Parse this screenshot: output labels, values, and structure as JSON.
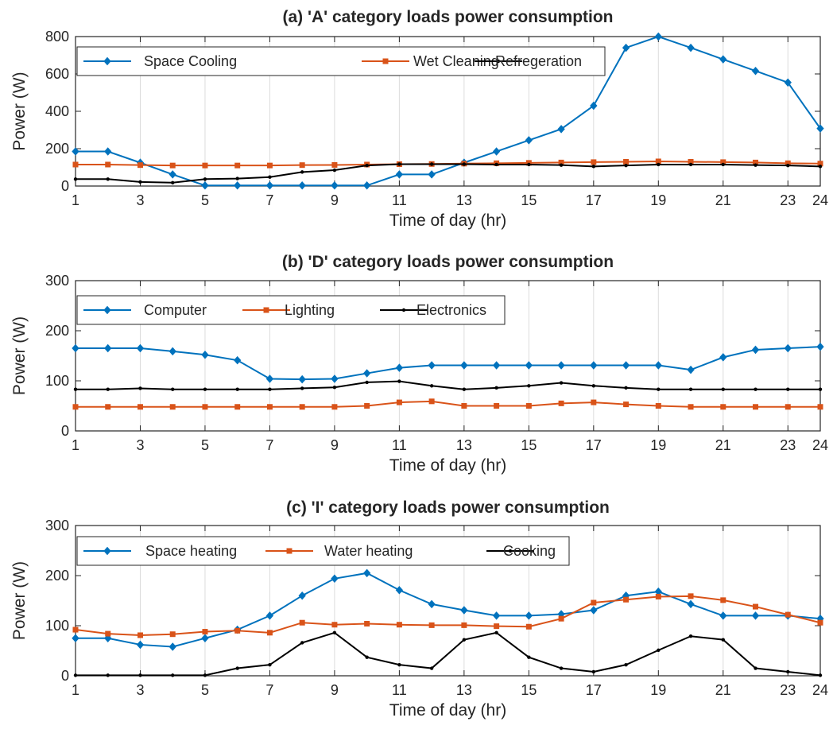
{
  "chart_data": [
    {
      "type": "line",
      "title": "(a) 'A' category loads power consumption",
      "xlabel": "Time of day (hr)",
      "ylabel": "Power (W)",
      "xlim": [
        1,
        24
      ],
      "ylim": [
        0,
        800
      ],
      "xticks": [
        1,
        3,
        5,
        7,
        9,
        11,
        13,
        15,
        17,
        19,
        21,
        23,
        24
      ],
      "yticks": [
        0,
        200,
        400,
        600,
        800
      ],
      "grid": "vertical",
      "legend": "top-left, horizontal",
      "x": [
        1,
        2,
        3,
        4,
        5,
        6,
        7,
        8,
        9,
        10,
        11,
        12,
        13,
        14,
        15,
        16,
        17,
        18,
        19,
        20,
        21,
        22,
        23,
        24
      ],
      "series": [
        {
          "name": "Space Cooling",
          "color": "#0072BD",
          "marker": "diamond",
          "values": [
            185,
            185,
            125,
            62,
            3,
            3,
            3,
            3,
            3,
            3,
            62,
            62,
            125,
            185,
            245,
            305,
            430,
            740,
            800,
            740,
            678,
            616,
            554,
            308
          ]
        },
        {
          "name": "Wet Cleaning",
          "color": "#D95319",
          "marker": "square",
          "values": [
            115,
            115,
            112,
            110,
            110,
            110,
            110,
            112,
            113,
            115,
            117,
            118,
            120,
            122,
            124,
            126,
            128,
            130,
            132,
            130,
            128,
            126,
            122,
            120
          ]
        },
        {
          "name": "Refregeration",
          "color": "#000000",
          "marker": "dot",
          "values": [
            37,
            37,
            22,
            18,
            37,
            40,
            48,
            75,
            85,
            110,
            117,
            117,
            117,
            115,
            115,
            112,
            105,
            110,
            115,
            115,
            115,
            112,
            110,
            105
          ]
        }
      ]
    },
    {
      "type": "line",
      "title": "(b) 'D' category loads power consumption",
      "xlabel": "Time of day (hr)",
      "ylabel": "Power (W)",
      "xlim": [
        1,
        24
      ],
      "ylim": [
        0,
        300
      ],
      "xticks": [
        1,
        3,
        5,
        7,
        9,
        11,
        13,
        15,
        17,
        19,
        21,
        23,
        24
      ],
      "yticks": [
        0,
        100,
        200,
        300
      ],
      "grid": "vertical",
      "legend": "top-left, horizontal",
      "x": [
        1,
        2,
        3,
        4,
        5,
        6,
        7,
        8,
        9,
        10,
        11,
        12,
        13,
        14,
        15,
        16,
        17,
        18,
        19,
        20,
        21,
        22,
        23,
        24
      ],
      "series": [
        {
          "name": "Computer",
          "color": "#0072BD",
          "marker": "diamond",
          "values": [
            165,
            165,
            165,
            159,
            152,
            141,
            104,
            103,
            104,
            115,
            126,
            131,
            131,
            131,
            131,
            131,
            131,
            131,
            131,
            122,
            147,
            162,
            165,
            168
          ]
        },
        {
          "name": "Lighting",
          "color": "#D95319",
          "marker": "square",
          "values": [
            48,
            48,
            48,
            48,
            48,
            48,
            48,
            48,
            48,
            50,
            57,
            59,
            50,
            50,
            50,
            55,
            57,
            53,
            50,
            48,
            48,
            48,
            48,
            48
          ]
        },
        {
          "name": "Electronics",
          "color": "#000000",
          "marker": "dot",
          "values": [
            83,
            83,
            85,
            83,
            83,
            83,
            83,
            85,
            87,
            97,
            99,
            90,
            83,
            86,
            90,
            96,
            90,
            86,
            83,
            83,
            83,
            83,
            83,
            83
          ]
        }
      ]
    },
    {
      "type": "line",
      "title": "(c) 'I' category loads power consumption",
      "xlabel": "Time of day (hr)",
      "ylabel": "Power (W)",
      "xlim": [
        1,
        24
      ],
      "ylim": [
        0,
        300
      ],
      "xticks": [
        1,
        3,
        5,
        7,
        9,
        11,
        13,
        15,
        17,
        19,
        21,
        23,
        24
      ],
      "yticks": [
        0,
        100,
        200,
        300
      ],
      "grid": "vertical",
      "legend": "top-left, horizontal",
      "x": [
        1,
        2,
        3,
        4,
        5,
        6,
        7,
        8,
        9,
        10,
        11,
        12,
        13,
        14,
        15,
        16,
        17,
        18,
        19,
        20,
        21,
        22,
        23,
        24
      ],
      "series": [
        {
          "name": "Space heating",
          "color": "#0072BD",
          "marker": "diamond",
          "values": [
            75,
            75,
            62,
            58,
            75,
            92,
            120,
            160,
            194,
            205,
            171,
            143,
            131,
            120,
            120,
            123,
            131,
            160,
            168,
            143,
            120,
            120,
            120,
            114
          ]
        },
        {
          "name": "Water heating",
          "color": "#D95319",
          "marker": "square",
          "values": [
            92,
            84,
            81,
            83,
            88,
            90,
            86,
            106,
            102,
            104,
            102,
            101,
            101,
            99,
            98,
            114,
            146,
            152,
            158,
            159,
            151,
            138,
            122,
            106
          ]
        },
        {
          "name": "Cooking",
          "color": "#000000",
          "marker": "dot",
          "values": [
            1,
            1,
            1,
            1,
            1,
            15,
            22,
            66,
            86,
            37,
            22,
            15,
            72,
            86,
            37,
            15,
            8,
            22,
            51,
            79,
            72,
            15,
            8,
            1
          ]
        }
      ]
    }
  ]
}
